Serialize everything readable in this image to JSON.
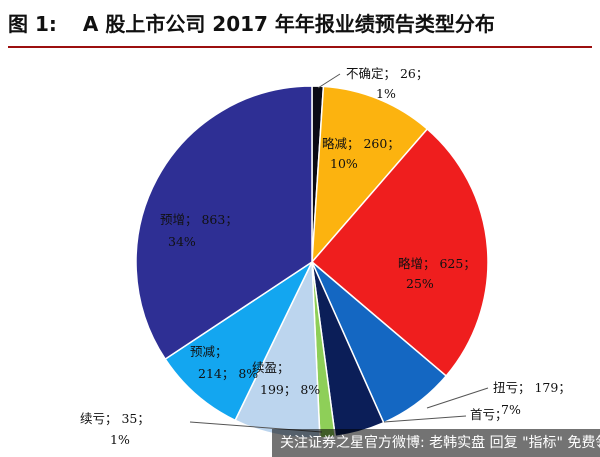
{
  "figure": {
    "number": "图 1:",
    "title": "A 股上市公司 2017 年年报业绩预告类型分布"
  },
  "watermark": "关注证券之星官方微博: 老韩实盘 回复 \"指标\" 免费领",
  "chart_data": {
    "type": "pie",
    "title": "A 股上市公司 2017 年年报业绩预告类型分布",
    "start_angle_deg": 0,
    "direction": "clockwise",
    "slices": [
      {
        "name": "不确定",
        "value": 26,
        "percent": "1%",
        "color": "#0a0a14",
        "label_line1": "不确定； 26；",
        "label_line2": "1%"
      },
      {
        "name": "略减",
        "value": 260,
        "percent": "10%",
        "color": "#fcb30f",
        "label_line1": "略减； 260；",
        "label_line2": "10%"
      },
      {
        "name": "略增",
        "value": 625,
        "percent": "25%",
        "color": "#ef1e1e",
        "label_line1": "略增； 625；",
        "label_line2": "25%"
      },
      {
        "name": "扭亏",
        "value": 179,
        "percent": "7%",
        "color": "#1467c2",
        "label_line1": "扭亏； 179；",
        "label_line2": "7%"
      },
      {
        "name": "首亏",
        "value": 115,
        "percent": "",
        "color": "#0b1e58",
        "label_line1": "首亏；",
        "label_line2": ""
      },
      {
        "name": "续亏",
        "value": 35,
        "percent": "1%",
        "color": "#8ecf58",
        "label_line1": "续亏； 35；",
        "label_line2": "1%"
      },
      {
        "name": "续盈",
        "value": 199,
        "percent": "8%",
        "color": "#bcd5ee",
        "label_line1": "续盈；",
        "label_line2": "199； 8%"
      },
      {
        "name": "预减",
        "value": 214,
        "percent": "8%",
        "color": "#13a6f0",
        "label_line1": "预减；",
        "label_line2": "214； 8%"
      },
      {
        "name": "预增",
        "value": 863,
        "percent": "34%",
        "color": "#2e2f94",
        "label_line1": "预增； 863；",
        "label_line2": "34%"
      }
    ]
  }
}
